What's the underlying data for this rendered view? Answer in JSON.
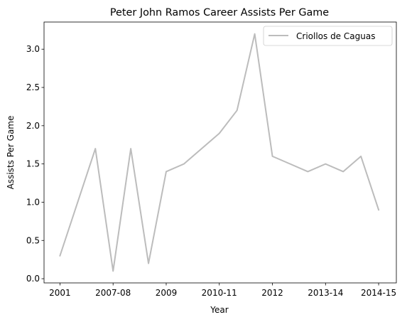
{
  "chart_data": {
    "type": "line",
    "title": "Peter John Ramos Career Assists Per Game",
    "xlabel": "Year",
    "ylabel": "Assists Per Game",
    "x": [
      0,
      1,
      2,
      3,
      4,
      5,
      6,
      7,
      8,
      9,
      10,
      11,
      12,
      13,
      14,
      15,
      16,
      17,
      18
    ],
    "tick_positions": [
      0,
      3,
      6,
      9,
      12,
      15,
      18
    ],
    "tick_labels": [
      "2001",
      "2007-08",
      "2009",
      "2010-11",
      "2012",
      "2013-14",
      "2014-15"
    ],
    "series": [
      {
        "name": "Criollos de Caguas",
        "color": "#bcbcbc",
        "values": [
          0.3,
          1.0,
          1.7,
          0.1,
          1.7,
          0.2,
          1.4,
          1.5,
          1.7,
          1.9,
          2.2,
          3.2,
          1.6,
          1.5,
          1.4,
          1.5,
          1.4,
          1.6,
          0.9
        ]
      }
    ],
    "yticks": [
      0.0,
      0.5,
      1.0,
      1.5,
      2.0,
      2.5,
      3.0
    ],
    "ytick_labels": [
      "0.0",
      "0.5",
      "1.0",
      "1.5",
      "2.0",
      "2.5",
      "3.0"
    ],
    "xlim": [
      -0.9,
      19.0
    ],
    "ylim": [
      -0.055,
      3.355
    ],
    "legend_position": "top-right",
    "grid": false
  }
}
